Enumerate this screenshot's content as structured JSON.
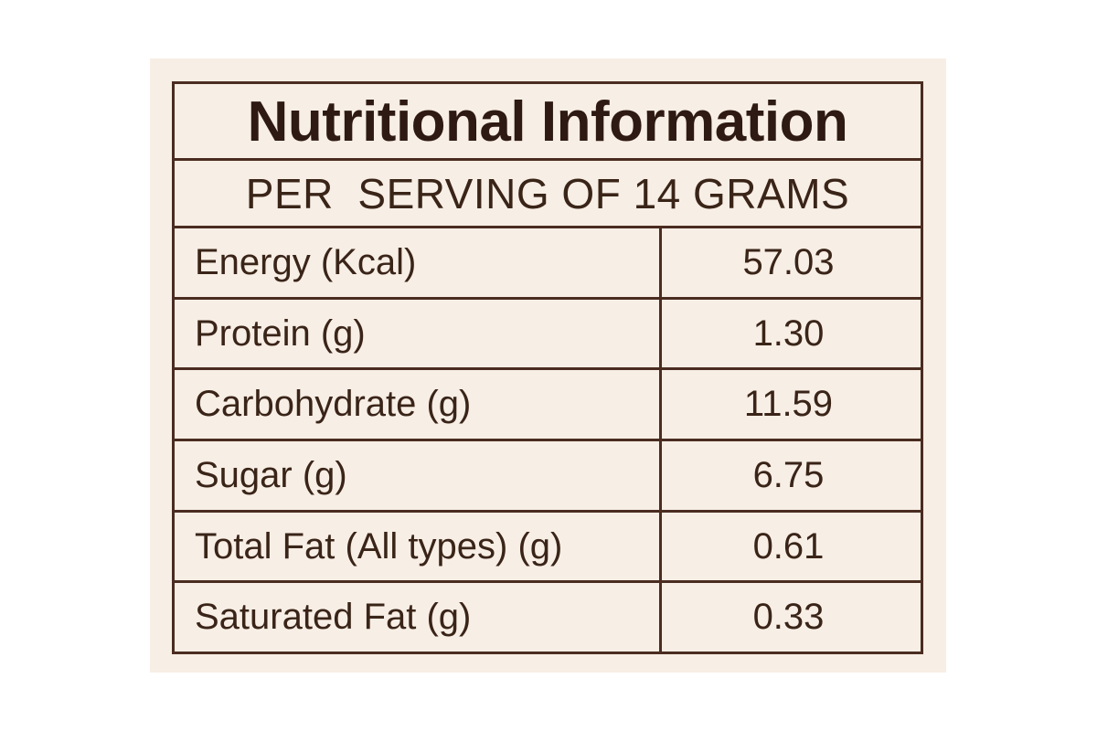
{
  "label": {
    "title": "Nutritional Information",
    "subtitle": "PER  SERVING OF 14 GRAMS",
    "rows": [
      {
        "name": "Energy (Kcal)",
        "value": "57.03"
      },
      {
        "name": "Protein (g)",
        "value": "1.30"
      },
      {
        "name": "Carbohydrate (g)",
        "value": "11.59"
      },
      {
        "name": "Sugar (g)",
        "value": "6.75"
      },
      {
        "name": "Total Fat (All types) (g)",
        "value": "0.61"
      },
      {
        "name": "Saturated Fat (g)",
        "value": "0.33"
      }
    ]
  },
  "colors": {
    "panel_background": "#f7eee5",
    "border": "#4a2c20",
    "text": "#3a2418"
  }
}
